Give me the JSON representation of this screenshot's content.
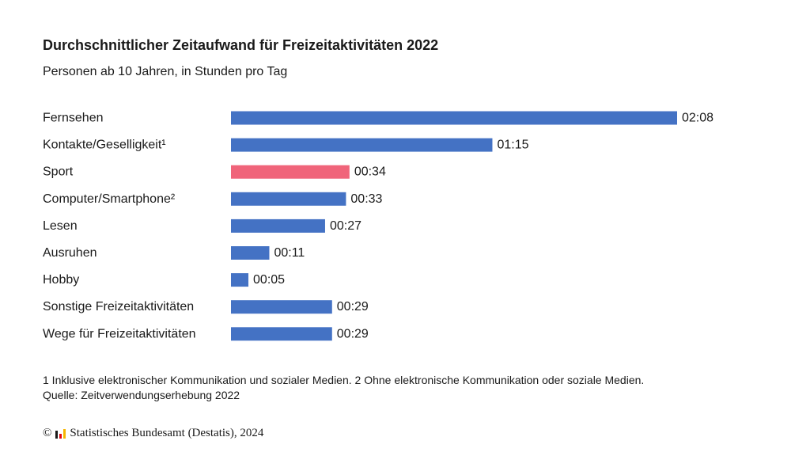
{
  "title": "Durchschnittlicher Zeitaufwand für Freizeitaktivitäten 2022",
  "subtitle": "Personen ab 10 Jahren, in Stunden pro Tag",
  "chart_data": {
    "type": "bar",
    "orientation": "horizontal",
    "title": "Durchschnittlicher Zeitaufwand für Freizeitaktivitäten 2022",
    "subtitle": "Personen ab 10 Jahren, in Stunden pro Tag",
    "categories": [
      "Fernsehen",
      "Kontakte/Geselligkeit¹",
      "Sport",
      "Computer/Smartphone²",
      "Lesen",
      "Ausruhen",
      "Hobby",
      "Sonstige Freizeitaktivitäten",
      "Wege für Freizeitaktivitäten"
    ],
    "values_minutes": [
      128,
      75,
      34,
      33,
      27,
      11,
      5,
      29,
      29
    ],
    "labels": [
      "02:08",
      "01:15",
      "00:34",
      "00:33",
      "00:27",
      "00:11",
      "00:05",
      "00:29",
      "00:29"
    ],
    "colors": [
      "#4472c4",
      "#4472c4",
      "#f0647a",
      "#4472c4",
      "#4472c4",
      "#4472c4",
      "#4472c4",
      "#4472c4",
      "#4472c4"
    ],
    "grid": false,
    "legend": "none"
  },
  "footnotes": [
    "1 Inklusive elektronischer Kommunikation und sozialer Medien. 2 Ohne elektronische Kommunikation oder soziale Medien.",
    "Quelle: Zeitverwendungserhebung 2022"
  ],
  "credit": {
    "copyright_symbol": "©",
    "text": "Statistisches Bundesamt (Destatis), 2024",
    "logo_icon": "destatis-bars-icon",
    "logo_colors": [
      "#1a1a1a",
      "#e30613",
      "#f7b600"
    ]
  }
}
